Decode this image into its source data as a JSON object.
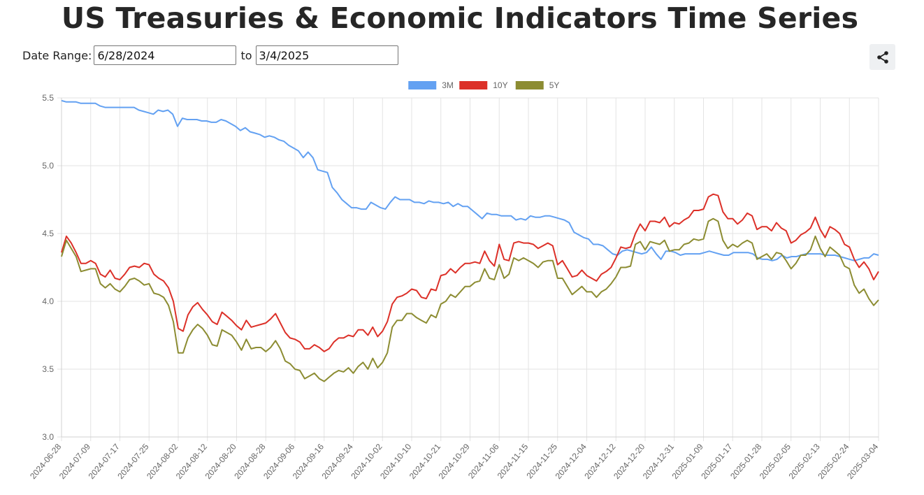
{
  "page": {
    "title": "US Treasuries & Economic Indicators Time Series",
    "date_range_label": "Date Range:",
    "start_date": "6/28/2024",
    "to_label": "to",
    "end_date": "3/4/2025",
    "share_icon": "share-icon"
  },
  "chart_data": {
    "type": "line",
    "title": "",
    "xlabel": "",
    "ylabel": "",
    "ylim": [
      3.0,
      5.5
    ],
    "yticks": [
      "5.5",
      "5.0",
      "4.5",
      "4.0",
      "3.5",
      "3.0"
    ],
    "grid": true,
    "legend_position": "top-center",
    "x_tick_labels": [
      "2024-06-28",
      "2024-07-09",
      "2024-07-17",
      "2024-07-25",
      "2024-08-02",
      "2024-08-12",
      "2024-08-20",
      "2024-08-28",
      "2024-09-06",
      "2024-09-16",
      "2024-09-24",
      "2024-10-02",
      "2024-10-10",
      "2024-10-21",
      "2024-10-29",
      "2024-11-06",
      "2024-11-15",
      "2024-11-25",
      "2024-12-04",
      "2024-12-12",
      "2024-12-20",
      "2024-12-31",
      "2025-01-09",
      "2025-01-17",
      "2025-01-28",
      "2025-02-05",
      "2025-02-13",
      "2025-02-24",
      "2025-03-04"
    ],
    "series": [
      {
        "name": "3M",
        "color": "#63a1f2",
        "values": [
          5.48,
          5.47,
          5.47,
          5.47,
          5.46,
          5.46,
          5.46,
          5.46,
          5.44,
          5.43,
          5.43,
          5.43,
          5.43,
          5.43,
          5.43,
          5.43,
          5.41,
          5.4,
          5.39,
          5.38,
          5.41,
          5.4,
          5.41,
          5.38,
          5.29,
          5.35,
          5.34,
          5.34,
          5.34,
          5.33,
          5.33,
          5.32,
          5.32,
          5.34,
          5.33,
          5.31,
          5.29,
          5.26,
          5.28,
          5.25,
          5.24,
          5.23,
          5.21,
          5.22,
          5.21,
          5.19,
          5.18,
          5.15,
          5.13,
          5.11,
          5.06,
          5.1,
          5.06,
          4.97,
          4.96,
          4.95,
          4.84,
          4.8,
          4.75,
          4.72,
          4.69,
          4.69,
          4.68,
          4.68,
          4.73,
          4.71,
          4.69,
          4.68,
          4.73,
          4.77,
          4.75,
          4.75,
          4.75,
          4.73,
          4.73,
          4.72,
          4.74,
          4.73,
          4.73,
          4.72,
          4.73,
          4.7,
          4.72,
          4.7,
          4.7,
          4.67,
          4.64,
          4.61,
          4.65,
          4.64,
          4.64,
          4.63,
          4.63,
          4.63,
          4.6,
          4.61,
          4.6,
          4.63,
          4.62,
          4.62,
          4.63,
          4.63,
          4.62,
          4.61,
          4.6,
          4.58,
          4.51,
          4.49,
          4.47,
          4.46,
          4.42,
          4.42,
          4.41,
          4.38,
          4.35,
          4.34,
          4.37,
          4.38,
          4.37,
          4.36,
          4.35,
          4.36,
          4.4,
          4.35,
          4.31,
          4.37,
          4.37,
          4.36,
          4.34,
          4.35,
          4.35,
          4.35,
          4.35,
          4.36,
          4.37,
          4.36,
          4.35,
          4.34,
          4.34,
          4.36,
          4.36,
          4.36,
          4.36,
          4.35,
          4.32,
          4.31,
          4.31,
          4.3,
          4.31,
          4.34,
          4.32,
          4.33,
          4.33,
          4.34,
          4.35,
          4.35,
          4.35,
          4.35,
          4.34,
          4.34,
          4.34,
          4.33,
          4.32,
          4.31,
          4.3,
          4.31,
          4.32,
          4.32,
          4.35,
          4.34
        ]
      },
      {
        "name": "10Y",
        "color": "#dc3028",
        "values": [
          4.36,
          4.48,
          4.43,
          4.36,
          4.28,
          4.28,
          4.3,
          4.28,
          4.2,
          4.18,
          4.23,
          4.17,
          4.16,
          4.2,
          4.25,
          4.26,
          4.25,
          4.28,
          4.27,
          4.2,
          4.17,
          4.15,
          4.1,
          4.0,
          3.8,
          3.78,
          3.9,
          3.96,
          3.99,
          3.94,
          3.9,
          3.85,
          3.83,
          3.92,
          3.89,
          3.86,
          3.82,
          3.79,
          3.86,
          3.81,
          3.82,
          3.83,
          3.84,
          3.87,
          3.91,
          3.84,
          3.77,
          3.73,
          3.72,
          3.7,
          3.65,
          3.65,
          3.68,
          3.66,
          3.63,
          3.65,
          3.7,
          3.73,
          3.73,
          3.75,
          3.74,
          3.79,
          3.79,
          3.75,
          3.81,
          3.74,
          3.78,
          3.85,
          3.98,
          4.03,
          4.04,
          4.06,
          4.09,
          4.08,
          4.03,
          4.02,
          4.09,
          4.08,
          4.19,
          4.2,
          4.24,
          4.21,
          4.25,
          4.28,
          4.28,
          4.29,
          4.28,
          4.37,
          4.3,
          4.26,
          4.42,
          4.31,
          4.3,
          4.43,
          4.44,
          4.43,
          4.43,
          4.42,
          4.39,
          4.41,
          4.43,
          4.41,
          4.27,
          4.3,
          4.24,
          4.18,
          4.19,
          4.23,
          4.19,
          4.17,
          4.15,
          4.2,
          4.22,
          4.25,
          4.32,
          4.4,
          4.39,
          4.4,
          4.5,
          4.57,
          4.52,
          4.59,
          4.59,
          4.58,
          4.62,
          4.55,
          4.58,
          4.57,
          4.6,
          4.62,
          4.67,
          4.67,
          4.68,
          4.77,
          4.79,
          4.78,
          4.66,
          4.61,
          4.61,
          4.57,
          4.6,
          4.65,
          4.63,
          4.53,
          4.55,
          4.55,
          4.52,
          4.58,
          4.54,
          4.52,
          4.43,
          4.45,
          4.49,
          4.51,
          4.54,
          4.62,
          4.53,
          4.47,
          4.55,
          4.53,
          4.5,
          4.42,
          4.4,
          4.31,
          4.25,
          4.29,
          4.24,
          4.16,
          4.22
        ]
      },
      {
        "name": "5Y",
        "color": "#8c8c32",
        "values": [
          4.33,
          4.45,
          4.39,
          4.33,
          4.22,
          4.23,
          4.24,
          4.24,
          4.13,
          4.1,
          4.13,
          4.09,
          4.07,
          4.11,
          4.16,
          4.17,
          4.15,
          4.12,
          4.13,
          4.06,
          4.05,
          4.03,
          3.97,
          3.85,
          3.62,
          3.62,
          3.73,
          3.79,
          3.83,
          3.8,
          3.75,
          3.68,
          3.67,
          3.79,
          3.77,
          3.75,
          3.7,
          3.64,
          3.72,
          3.65,
          3.66,
          3.66,
          3.63,
          3.66,
          3.71,
          3.65,
          3.56,
          3.54,
          3.5,
          3.49,
          3.43,
          3.45,
          3.47,
          3.43,
          3.41,
          3.44,
          3.47,
          3.49,
          3.48,
          3.51,
          3.47,
          3.52,
          3.55,
          3.5,
          3.58,
          3.51,
          3.55,
          3.62,
          3.81,
          3.86,
          3.86,
          3.91,
          3.91,
          3.88,
          3.86,
          3.84,
          3.9,
          3.88,
          3.98,
          4.0,
          4.05,
          4.03,
          4.07,
          4.11,
          4.11,
          4.14,
          4.15,
          4.24,
          4.17,
          4.16,
          4.27,
          4.17,
          4.2,
          4.32,
          4.3,
          4.32,
          4.3,
          4.28,
          4.25,
          4.29,
          4.3,
          4.3,
          4.17,
          4.17,
          4.11,
          4.05,
          4.08,
          4.11,
          4.07,
          4.07,
          4.03,
          4.07,
          4.09,
          4.13,
          4.18,
          4.25,
          4.25,
          4.26,
          4.42,
          4.44,
          4.38,
          4.44,
          4.43,
          4.42,
          4.45,
          4.37,
          4.38,
          4.38,
          4.42,
          4.43,
          4.46,
          4.45,
          4.46,
          4.59,
          4.61,
          4.59,
          4.45,
          4.39,
          4.42,
          4.4,
          4.43,
          4.45,
          4.43,
          4.31,
          4.33,
          4.35,
          4.31,
          4.36,
          4.35,
          4.3,
          4.24,
          4.28,
          4.34,
          4.34,
          4.38,
          4.48,
          4.39,
          4.33,
          4.4,
          4.37,
          4.34,
          4.26,
          4.24,
          4.12,
          4.06,
          4.09,
          4.02,
          3.97,
          4.01
        ]
      }
    ]
  }
}
